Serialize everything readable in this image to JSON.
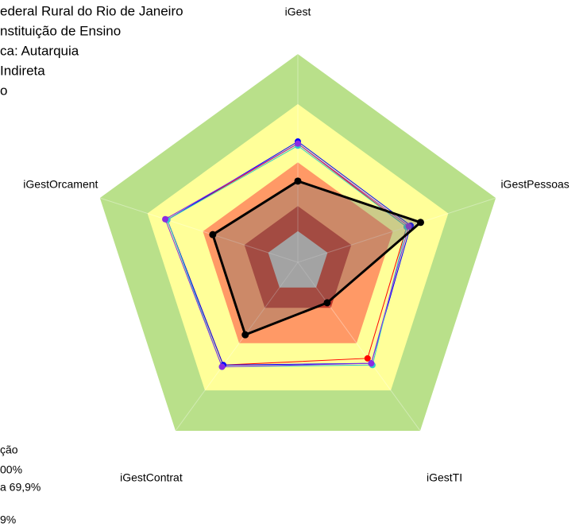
{
  "chart_data": {
    "type": "radar",
    "categories": [
      "iGest",
      "iGestPessoas",
      "iGestTI",
      "iGestContrat",
      "iGestOrcament"
    ],
    "rlim": [
      0,
      100
    ],
    "bands": [
      {
        "value": 100,
        "color": "#b9e08a"
      },
      {
        "value": 76,
        "color": "#ffff99"
      },
      {
        "value": 48,
        "color": "#ff9966"
      },
      {
        "value": 27,
        "color": "#c0392b"
      },
      {
        "value": 15,
        "color": "#c0c0c0"
      }
    ],
    "series": [
      {
        "color": "#ff0000",
        "values": [
          57,
          55,
          57,
          61,
          66
        ]
      },
      {
        "color": "#0000ff",
        "values": [
          58,
          57,
          60,
          61,
          66
        ]
      },
      {
        "color": "#33cccc",
        "values": [
          56,
          55,
          61,
          62,
          66
        ]
      },
      {
        "color": "#8a2be2",
        "values": [
          57,
          56,
          60,
          62,
          67
        ]
      },
      {
        "color": "#000000",
        "values": [
          39,
          62,
          24,
          43,
          43
        ]
      }
    ],
    "annotations": [
      "ederal Rural do Rio de Janeiro",
      "nstituição de Ensino",
      "ca: Autarquia",
      "Indireta",
      "o"
    ],
    "legend_text": [
      "ção",
      "00%",
      "a 69,9%",
      "9%"
    ]
  }
}
